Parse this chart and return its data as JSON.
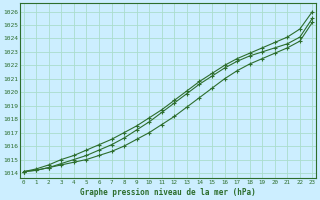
{
  "title": "Graphe pression niveau de la mer (hPa)",
  "bg_color": "#cceeff",
  "grid_color": "#aaddcc",
  "line_color": "#2d6e2d",
  "xlim": [
    -0.3,
    23.3
  ],
  "ylim": [
    1013.6,
    1026.6
  ],
  "yticks": [
    1014,
    1015,
    1016,
    1017,
    1018,
    1019,
    1020,
    1021,
    1022,
    1023,
    1024,
    1025,
    1026
  ],
  "xticks": [
    0,
    1,
    2,
    3,
    4,
    5,
    6,
    7,
    8,
    9,
    10,
    11,
    12,
    13,
    14,
    15,
    16,
    17,
    18,
    19,
    20,
    21,
    22,
    23
  ],
  "series1": [
    1014.1,
    1014.2,
    1014.4,
    1014.6,
    1014.8,
    1015.0,
    1015.3,
    1015.6,
    1016.0,
    1016.5,
    1017.0,
    1017.6,
    1018.2,
    1018.9,
    1019.6,
    1020.3,
    1021.0,
    1021.6,
    1022.1,
    1022.5,
    1022.9,
    1023.3,
    1023.8,
    1025.2
  ],
  "series2": [
    1014.1,
    1014.2,
    1014.4,
    1014.7,
    1015.0,
    1015.3,
    1015.7,
    1016.1,
    1016.6,
    1017.2,
    1017.8,
    1018.5,
    1019.2,
    1019.9,
    1020.6,
    1021.2,
    1021.8,
    1022.3,
    1022.7,
    1023.0,
    1023.3,
    1023.6,
    1024.1,
    1025.5
  ],
  "series3": [
    1014.1,
    1014.3,
    1014.6,
    1015.0,
    1015.3,
    1015.7,
    1016.1,
    1016.5,
    1017.0,
    1017.5,
    1018.1,
    1018.7,
    1019.4,
    1020.1,
    1020.8,
    1021.4,
    1022.0,
    1022.5,
    1022.9,
    1023.3,
    1023.7,
    1024.1,
    1024.7,
    1026.0
  ],
  "ytick_fontsize": 4.5,
  "xtick_fontsize": 4.2,
  "xlabel_fontsize": 5.5
}
